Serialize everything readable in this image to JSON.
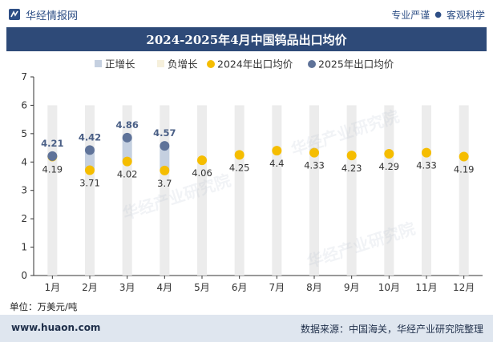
{
  "header": {
    "brand": "华经情报网",
    "right_a": "专业严谨",
    "right_sep": "●",
    "right_b": "客观科学"
  },
  "footer": {
    "url": "www.huaon.com",
    "source": "数据来源：中国海关，华经产业研究院整理"
  },
  "unit": "单位：万美元/吨",
  "watermark": "华经产业研究院",
  "colors": {
    "title_bg": "#2e4a78",
    "bar_2025": "#c5d0e0",
    "bar_bg": "#ececec",
    "dot_2024": "#f5bd00",
    "dot_2025": "#5f7399",
    "label_2025": "#4a5f86"
  },
  "chart_data": {
    "type": "line",
    "title": "2024-2025年4月中国钨品出口均价",
    "categories": [
      "1月",
      "2月",
      "3月",
      "4月",
      "5月",
      "6月",
      "7月",
      "8月",
      "9月",
      "10月",
      "11月",
      "12月"
    ],
    "ylim": [
      0,
      7
    ],
    "yticks": [
      0,
      1,
      2,
      3,
      4,
      5,
      6,
      7
    ],
    "legend": [
      {
        "key": "pos",
        "label": "正增长"
      },
      {
        "key": "neg",
        "label": "负增长"
      },
      {
        "key": "s2024",
        "label": "2024年出口均价"
      },
      {
        "key": "s2025",
        "label": "2025年出口均价"
      }
    ],
    "series": [
      {
        "name": "2024年出口均价",
        "values": [
          4.19,
          3.71,
          4.02,
          3.7,
          4.06,
          4.25,
          4.4,
          4.33,
          4.23,
          4.29,
          4.33,
          4.19
        ]
      },
      {
        "name": "2025年出口均价",
        "values": [
          4.21,
          4.42,
          4.86,
          4.57,
          null,
          null,
          null,
          null,
          null,
          null,
          null,
          null
        ]
      }
    ],
    "background_bar_value": 6
  }
}
